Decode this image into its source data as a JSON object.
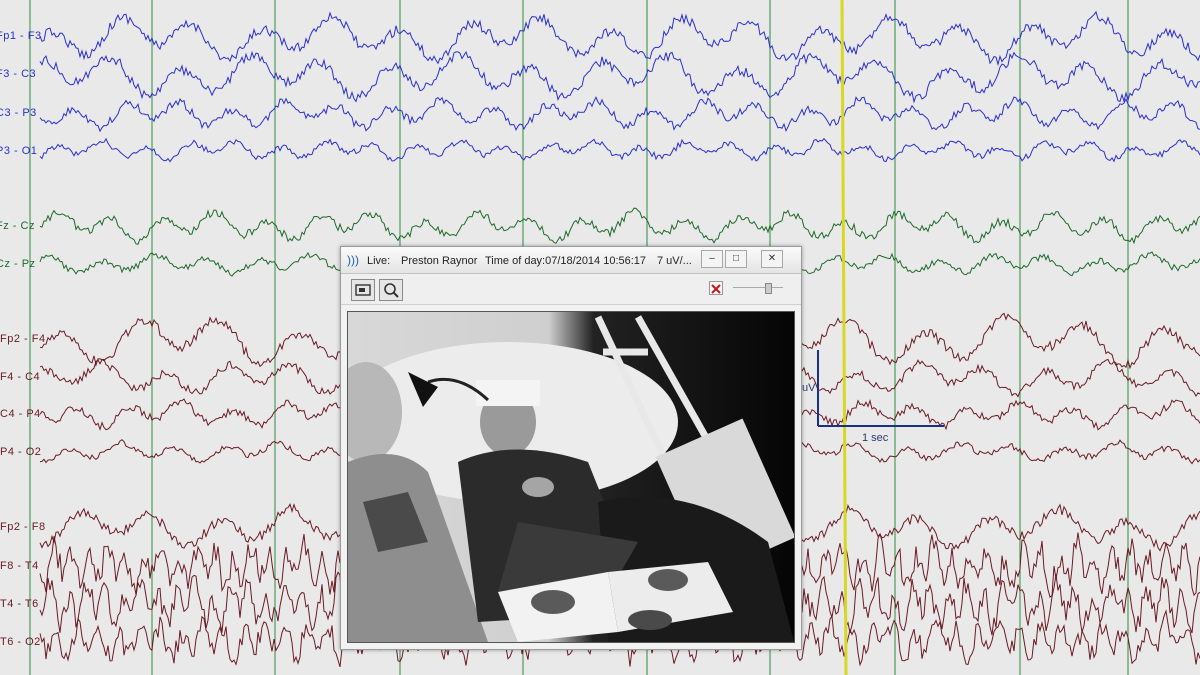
{
  "channels": {
    "left_top": [
      {
        "label": "Fp1 - F3",
        "color": "#2a2fd0"
      },
      {
        "label": "F3 - C3",
        "color": "#2a2fd0"
      },
      {
        "label": "C3 - P3",
        "color": "#2a2fd0"
      },
      {
        "label": "P3 - O1",
        "color": "#2a2fd0"
      }
    ],
    "central": [
      {
        "label": "Fz - Cz",
        "color": "#1d6a2a"
      },
      {
        "label": "Cz - Pz",
        "color": "#1d6a2a"
      }
    ],
    "right": [
      {
        "label": "Fp2 - F4",
        "color": "#6a1a22"
      },
      {
        "label": "F4 - C4",
        "color": "#6a1a22"
      },
      {
        "label": "C4 - P4",
        "color": "#6a1a22"
      },
      {
        "label": "P4 - O2",
        "color": "#6a1a22"
      }
    ],
    "temporal": [
      {
        "label": "Fp2 - F8",
        "color": "#6a1a22"
      },
      {
        "label": "F8 - T4",
        "color": "#6a1a22"
      },
      {
        "label": "T4 - T6",
        "color": "#6a1a22"
      },
      {
        "label": "T6 - O2",
        "color": "#6a1a22"
      }
    ]
  },
  "scale": {
    "time_label": "1 sec",
    "amp_label": "uV"
  },
  "video_window": {
    "status": "Live:",
    "patient": "Preston Raynor",
    "time_of_day": "Time of day:07/18/2014 10:56:17",
    "sensitivity": "7 uV/..."
  },
  "colors": {
    "grid": "#2e8a3a",
    "cursor": "#d8d820",
    "background": "#e9e9ea"
  },
  "icons": [
    "signal-icon",
    "camera-icon",
    "zoom-icon",
    "close-video-icon",
    "minimize-icon",
    "maximize-icon",
    "close-icon"
  ]
}
